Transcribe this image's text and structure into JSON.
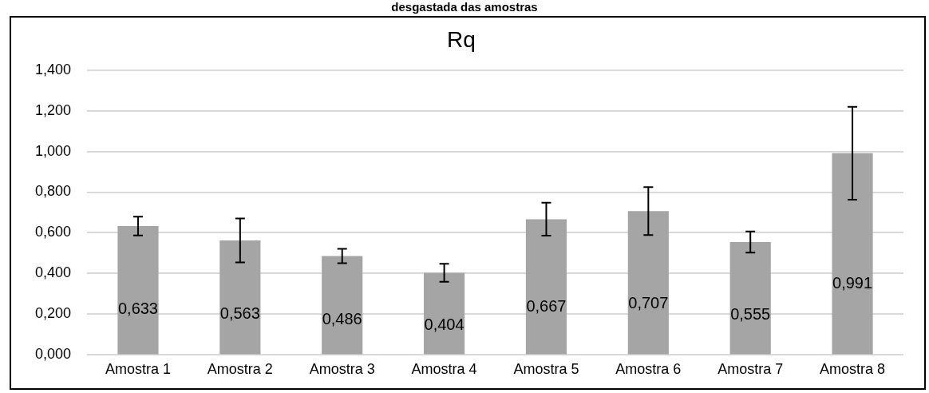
{
  "chart_data": {
    "type": "bar",
    "title": "Rq",
    "annotations": [
      "desgastada das amostras"
    ],
    "categories": [
      "Amostra 1",
      "Amostra 2",
      "Amostra 3",
      "Amostra 4",
      "Amostra 5",
      "Amostra 6",
      "Amostra 7",
      "Amostra 8"
    ],
    "values": [
      0.633,
      0.563,
      0.486,
      0.404,
      0.667,
      0.707,
      0.555,
      0.991
    ],
    "errors": [
      0.046,
      0.108,
      0.035,
      0.044,
      0.081,
      0.118,
      0.052,
      0.228
    ],
    "value_labels": [
      "0,633",
      "0,563",
      "0,486",
      "0,404",
      "0,667",
      "0,707",
      "0,555",
      "0,991"
    ],
    "color": "#a5a5a5",
    "ylim": [
      0,
      1.4
    ],
    "yticks": [
      {
        "value": 0,
        "label": "0,000"
      },
      {
        "value": 0.2,
        "label": "0,200"
      },
      {
        "value": 0.4,
        "label": "0,400"
      },
      {
        "value": 0.6,
        "label": "0,600"
      },
      {
        "value": 0.8,
        "label": "0,800"
      },
      {
        "value": 1.0,
        "label": "1,000"
      },
      {
        "value": 1.2,
        "label": "1,200"
      },
      {
        "value": 1.4,
        "label": "1,400"
      }
    ],
    "grid": "y",
    "legend": false
  }
}
